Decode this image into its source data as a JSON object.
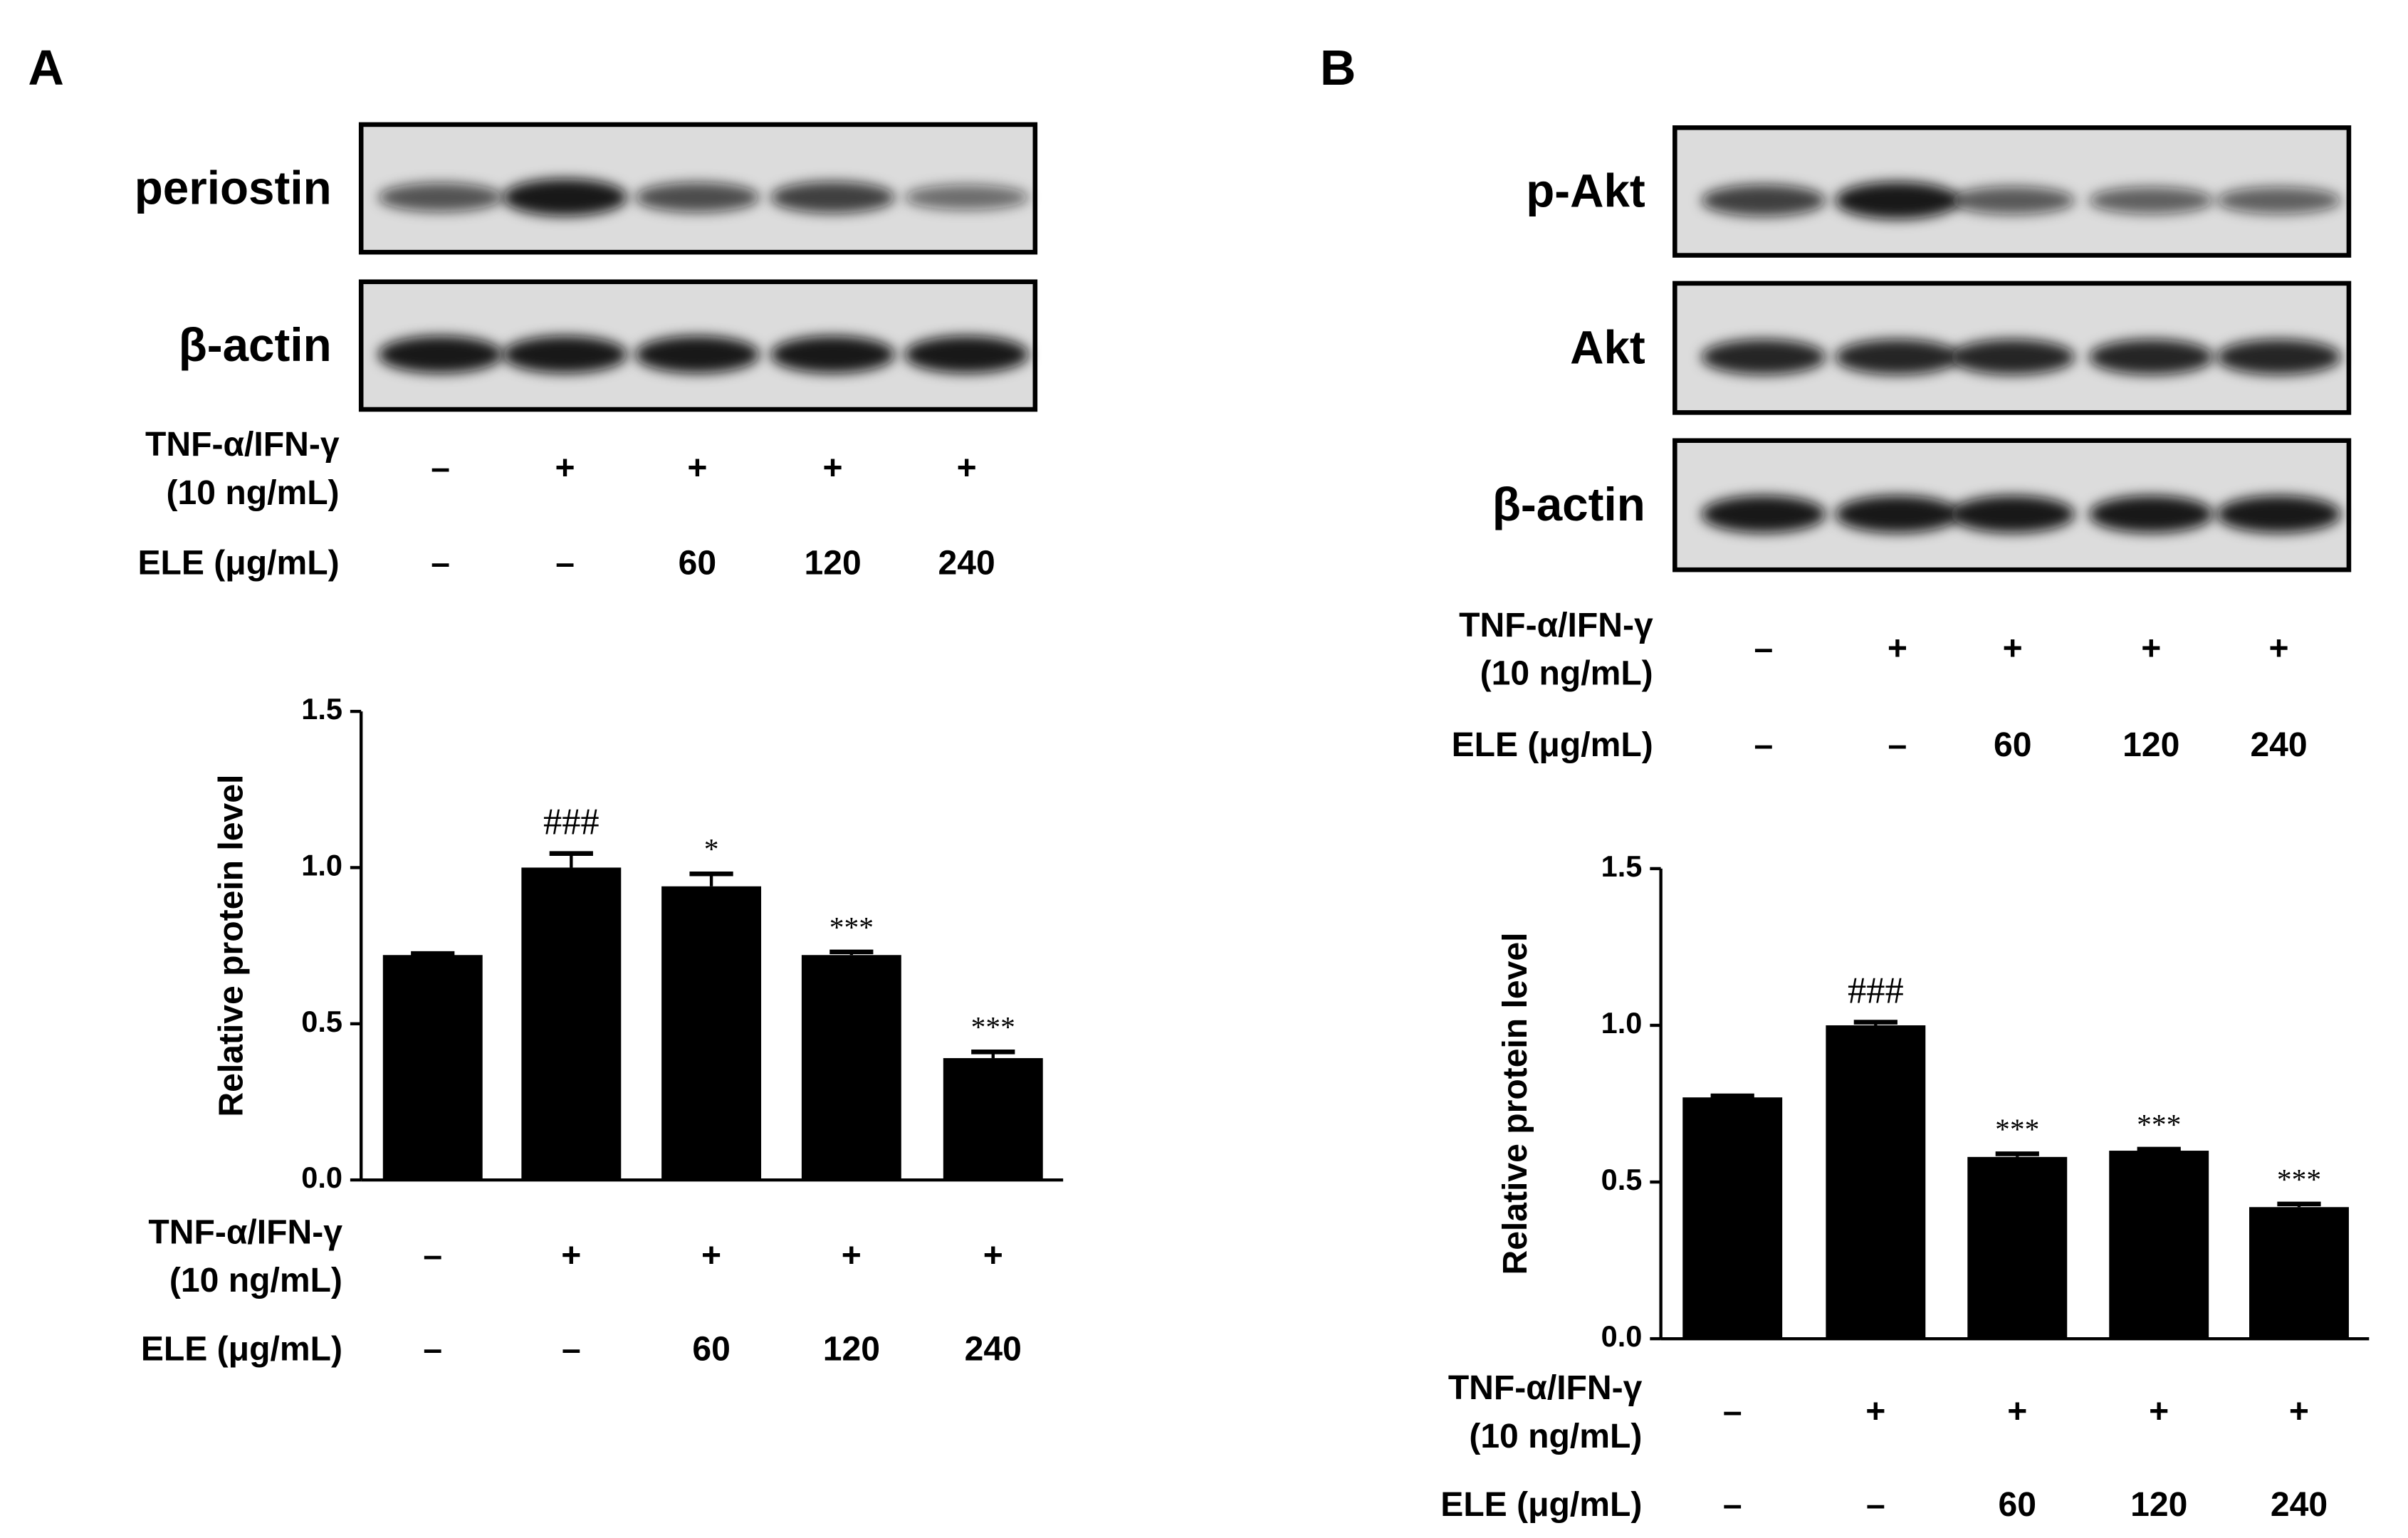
{
  "panels": [
    {
      "label": "A",
      "blots": [
        "periostin",
        "β-actin"
      ],
      "treatment_labels": [
        [
          "TNF-α/IFN-γ",
          "(10 ng/mL)"
        ],
        "ELE (μg/mL)"
      ],
      "treatments": [
        [
          "–",
          "–"
        ],
        [
          "+",
          "–"
        ],
        [
          "+",
          "60"
        ],
        [
          "+",
          "120"
        ],
        [
          "+",
          "240"
        ]
      ]
    },
    {
      "label": "B",
      "blots": [
        "p-Akt",
        "Akt",
        "β-actin"
      ],
      "treatment_labels": [
        [
          "TNF-α/IFN-γ",
          "(10 ng/mL)"
        ],
        "ELE (μg/mL)"
      ],
      "treatments": [
        [
          "–",
          "–"
        ],
        [
          "+",
          "–"
        ],
        [
          "+",
          "60"
        ],
        [
          "+",
          "120"
        ],
        [
          "+",
          "240"
        ]
      ]
    }
  ],
  "chart_data": [
    {
      "type": "bar",
      "y_label": "Relative protein level",
      "color": "#000000",
      "x_row_labels": [
        [
          "TNF-α/IFN-γ",
          "(10 ng/mL)"
        ],
        "ELE (μg/mL)"
      ],
      "categories": [
        [
          "–",
          "–"
        ],
        [
          "+",
          "–"
        ],
        [
          "+",
          "60"
        ],
        [
          "+",
          "120"
        ],
        [
          "+",
          "240"
        ]
      ],
      "values": [
        0.72,
        1.0,
        0.94,
        0.72,
        0.39
      ],
      "errors": [
        0.005,
        0.045,
        0.04,
        0.01,
        0.02
      ],
      "annotations": [
        null,
        "###",
        "*",
        "***",
        "***"
      ],
      "ylim": [
        0,
        1.5
      ],
      "yticks": [
        {
          "value": 0,
          "label": "0.0"
        },
        0.5,
        {
          "value": 1,
          "label": "1.0"
        },
        1.5
      ]
    },
    {
      "type": "bar",
      "y_label": "Relative protein level",
      "color": "#000000",
      "x_row_labels": [
        [
          "TNF-α/IFN-γ",
          "(10 ng/mL)"
        ],
        "ELE (μg/mL)"
      ],
      "categories": [
        [
          "–",
          "–"
        ],
        [
          "+",
          "–"
        ],
        [
          "+",
          "60"
        ],
        [
          "+",
          "120"
        ],
        [
          "+",
          "240"
        ]
      ],
      "values": [
        0.77,
        1.0,
        0.58,
        0.6,
        0.42
      ],
      "errors": [
        0.005,
        0.01,
        0.01,
        0.005,
        0.01
      ],
      "annotations": [
        null,
        "###",
        "***",
        "***",
        "***"
      ],
      "ylim": [
        0,
        1.5
      ],
      "yticks": [
        {
          "value": 0,
          "label": "0.0"
        },
        0.5,
        {
          "value": 1,
          "label": "1.0"
        },
        1.5
      ]
    }
  ]
}
